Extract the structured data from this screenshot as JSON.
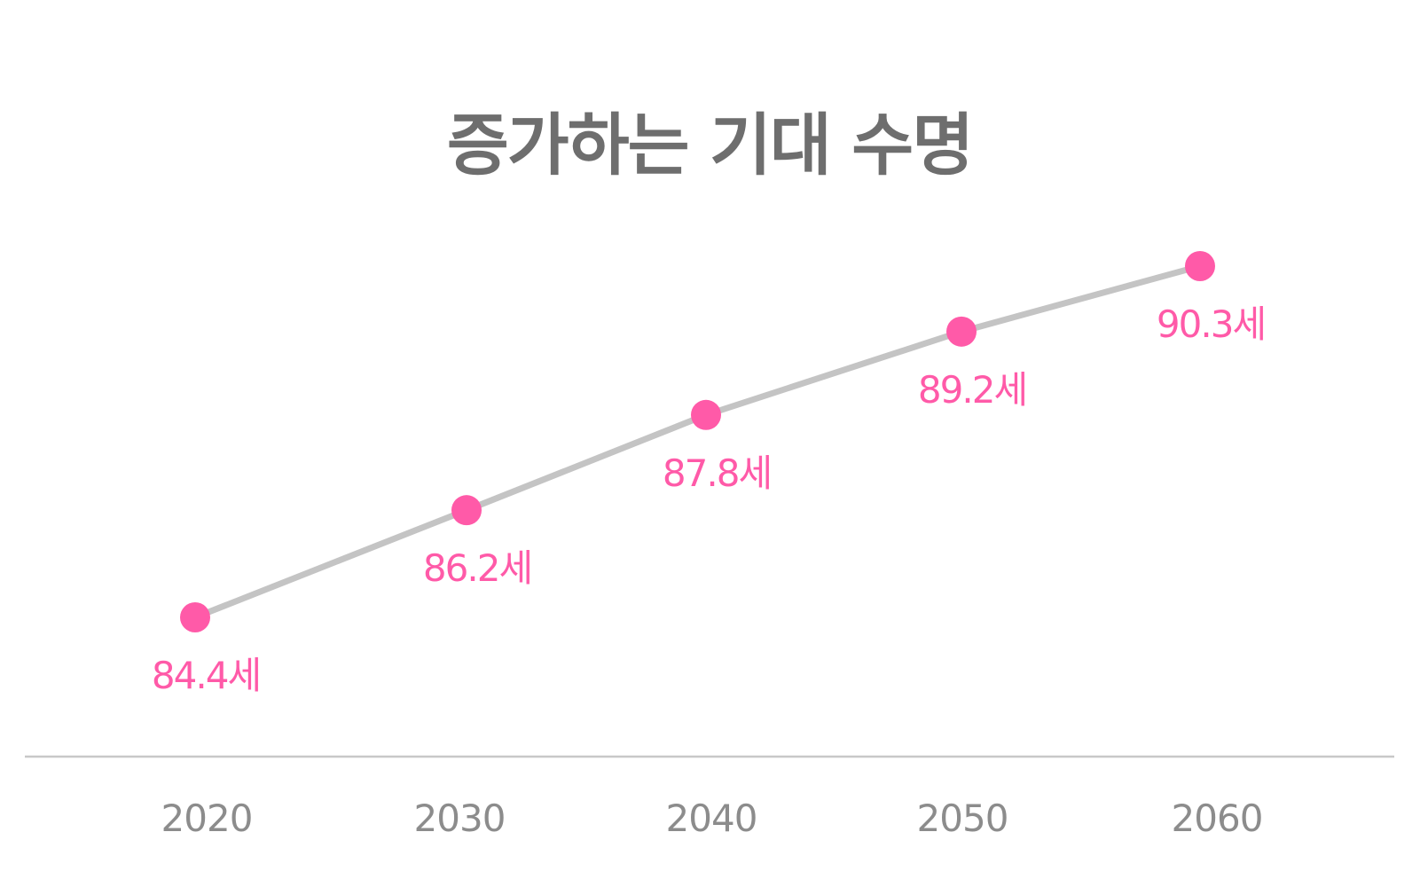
{
  "chart_data": {
    "type": "line",
    "title": "증가하는 기대 수명",
    "categories": [
      "2020",
      "2030",
      "2040",
      "2050",
      "2060"
    ],
    "values": [
      84.4,
      86.2,
      87.8,
      89.2,
      90.3
    ],
    "data_labels": [
      "84.4세",
      "86.2세",
      "87.8세",
      "89.2세",
      "90.3세"
    ],
    "xlabel": "",
    "ylabel": "",
    "grid": false,
    "legend": "none",
    "colors": {
      "title": "#6e6e6e",
      "line": "#c4c4c4",
      "points": "#ff5aa8",
      "labels": "#ff5aa8",
      "ticks": "#8c8c8c",
      "axis": "#c8c8c8"
    }
  }
}
